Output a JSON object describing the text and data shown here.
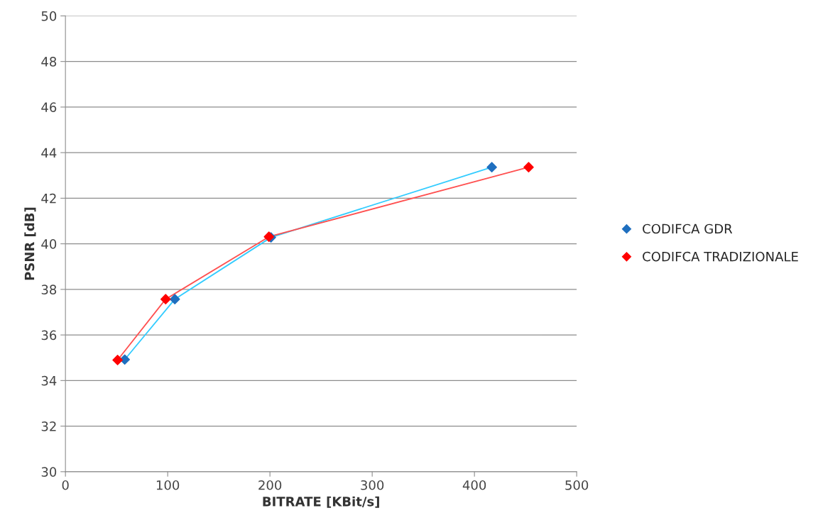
{
  "chart_data": {
    "type": "scatter",
    "xlabel": "BITRATE [KBit/s]",
    "ylabel": "PSNR [dB]",
    "xlim": [
      0,
      500
    ],
    "xticks": [
      0,
      100,
      200,
      300,
      400,
      500
    ],
    "ylim": [
      30,
      50
    ],
    "yticks": [
      30,
      32,
      34,
      36,
      38,
      40,
      42,
      44,
      46,
      48,
      50
    ],
    "grid": "y",
    "legend": "right",
    "marker": "diamond",
    "series": [
      {
        "type": "line",
        "marker": "none",
        "color": "#33ccff",
        "x": [
          58,
          107,
          201,
          417
        ],
        "values": [
          34.92,
          37.57,
          40.28,
          43.36
        ]
      },
      {
        "type": "line",
        "marker": "none",
        "color": "#ff5050",
        "x": [
          51,
          98,
          199,
          453
        ],
        "values": [
          34.9,
          37.57,
          40.31,
          43.36
        ]
      },
      {
        "name": "CODIFCA GDR",
        "color": "#1f6fbf",
        "x": [
          58,
          107,
          201,
          417
        ],
        "values": [
          34.92,
          37.57,
          40.28,
          43.36
        ]
      },
      {
        "name": "CODIFCA TRADIZIONALE",
        "color": "#ff0000",
        "x": [
          51,
          98,
          199,
          453
        ],
        "values": [
          34.9,
          37.57,
          40.31,
          43.36
        ]
      }
    ]
  }
}
